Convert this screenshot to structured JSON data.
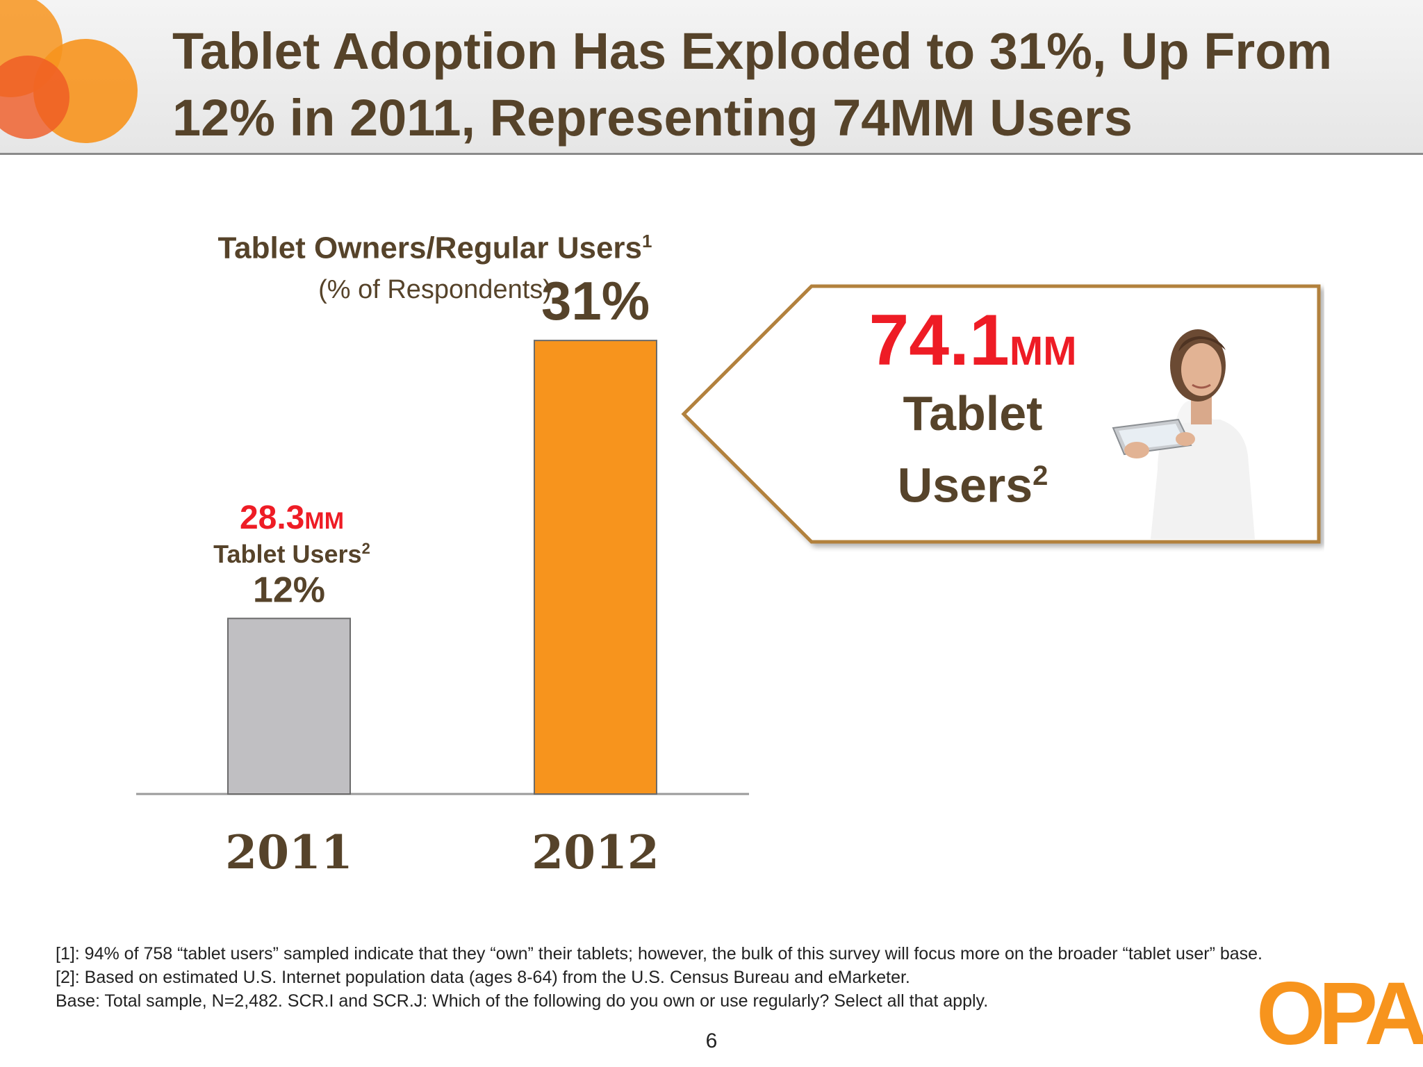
{
  "header": {
    "title": "Tablet Adoption Has Exploded to 31%, Up From 12% in 2011, Representing 74MM Users"
  },
  "chart_data": {
    "type": "bar",
    "title": "Tablet Owners/Regular Users",
    "title_footnote": "1",
    "subtitle": "(% of Respondents)",
    "categories": [
      "2011",
      "2012"
    ],
    "values": [
      12,
      31
    ],
    "value_labels": [
      "12%",
      "31%"
    ],
    "colors": [
      "#c0bfc2",
      "#f7941d"
    ],
    "ylim": [
      0,
      33
    ],
    "grid": false,
    "legend": "none"
  },
  "annotation_2011": {
    "value": "28.3",
    "unit": "MM",
    "label": "Tablet Users",
    "footnote": "2"
  },
  "callout": {
    "value": "74.1",
    "unit": "MM",
    "line1": "Tablet",
    "line2": "Users",
    "footnote": "2"
  },
  "footnotes": [
    "[1]: 94% of 758 “tablet users” sampled indicate that they “own” their tablets; however, the bulk of this survey will focus more on the broader “tablet user” base.",
    "[2]: Based on estimated U.S. Internet population data (ages 8-64) from the U.S. Census Bureau and eMarketer.",
    "Base:   Total sample, N=2,482.  SCR.I and SCR.J:  Which of the following do you own or use regularly?  Select all that apply."
  ],
  "page_number": "6",
  "logo_text": "OPA",
  "colors": {
    "title": "#56432a",
    "accent_orange": "#f7941d",
    "bar_2011": "#c0bfc2",
    "highlight_red": "#ee1c25"
  }
}
